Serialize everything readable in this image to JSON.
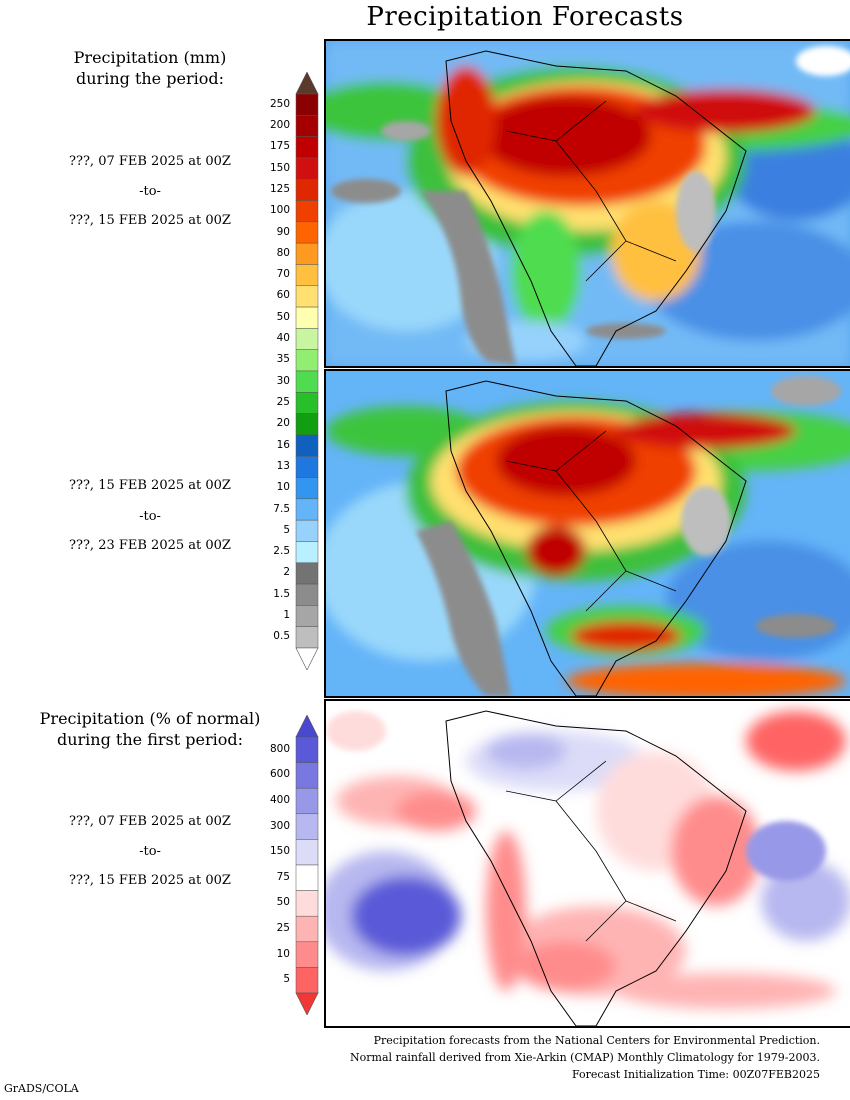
{
  "title": "Precipitation Forecasts",
  "section1": {
    "heading_line1": "Precipitation (mm)",
    "heading_line2": "during the period:",
    "period1": {
      "start": "???, 07 FEB 2025 at 00Z",
      "sep": "-to-",
      "end": "???, 15 FEB 2025 at 00Z"
    },
    "period2": {
      "start": "???, 15 FEB 2025 at 00Z",
      "sep": "-to-",
      "end": "???, 23 FEB 2025 at 00Z"
    },
    "colorbar": {
      "labels": [
        "250",
        "200",
        "175",
        "150",
        "125",
        "100",
        "90",
        "80",
        "70",
        "60",
        "50",
        "40",
        "35",
        "30",
        "25",
        "20",
        "16",
        "13",
        "10",
        "7.5",
        "5",
        "2.5",
        "2",
        "1.5",
        "1",
        "0.5"
      ],
      "colors": [
        "#8b0000",
        "#a40000",
        "#c00000",
        "#d01010",
        "#e02800",
        "#f04000",
        "#ff6400",
        "#ff9a20",
        "#ffc040",
        "#ffe070",
        "#ffffb0",
        "#c8f5a0",
        "#90ee70",
        "#50dc50",
        "#28c028",
        "#119e11",
        "#1060c0",
        "#1e78e0",
        "#3296f0",
        "#64b4f8",
        "#96d2fc",
        "#b8f0ff",
        "#737373",
        "#8c8c8c",
        "#a6a6a6",
        "#bebebe"
      ],
      "top_arrow_color": "#5a3a2a",
      "bottom_arrow_color": "#ffffff"
    }
  },
  "section2": {
    "heading_line1": "Precipitation (% of normal)",
    "heading_line2": "during the first period:",
    "period": {
      "start": "???, 07 FEB 2025 at 00Z",
      "sep": "-to-",
      "end": "???, 15 FEB 2025 at 00Z"
    },
    "colorbar": {
      "labels": [
        "800",
        "600",
        "400",
        "300",
        "150",
        "75",
        "50",
        "25",
        "10",
        "5"
      ],
      "colors": [
        "#5a5ad8",
        "#7878e0",
        "#9898e8",
        "#b8b8f0",
        "#dcdcf8",
        "#ffffff",
        "#ffdcdc",
        "#ffb4b4",
        "#ff8c8c",
        "#ff6464"
      ],
      "top_arrow_color": "#4848d0",
      "bottom_arrow_color": "#f03838"
    }
  },
  "credits": {
    "line1": "Precipitation forecasts from the National Centers for Environmental Prediction.",
    "line2": "Normal rainfall derived from Xie-Arkin (CMAP) Monthly Climatology for 1979-2003.",
    "line3": "Forecast Initialization Time: 00Z07FEB2025"
  },
  "footer": "GrADS/COLA"
}
